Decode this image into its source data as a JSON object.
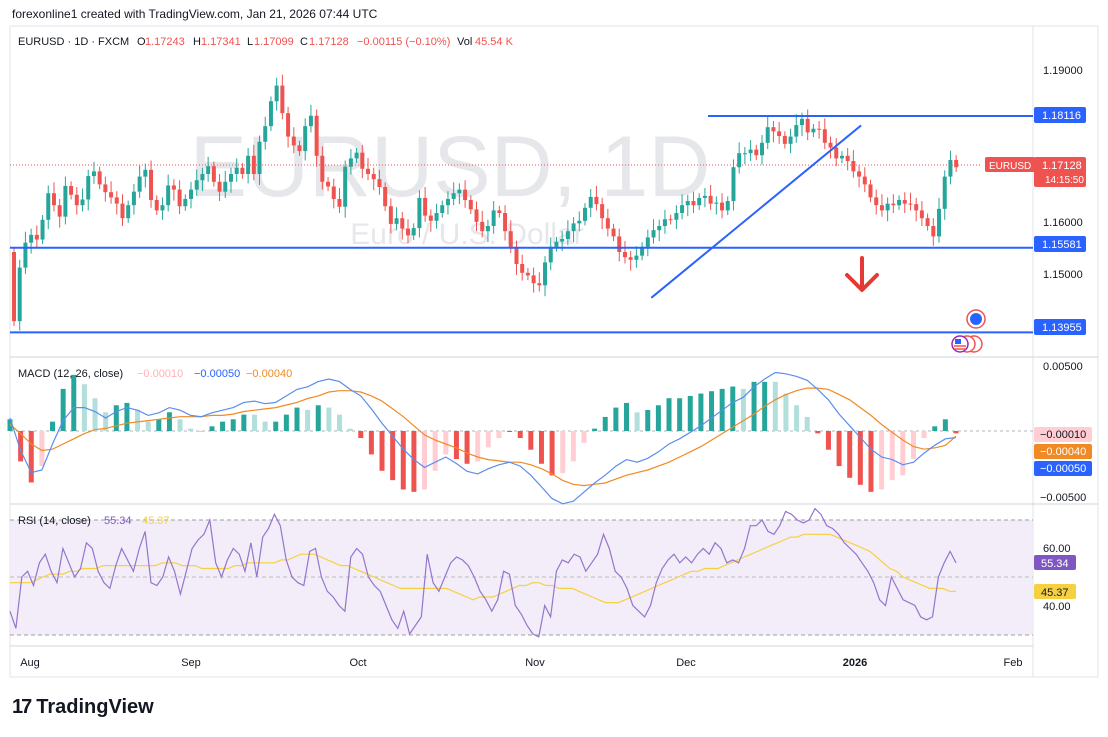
{
  "header": {
    "caption": "forexonline1 created with TradingView.com, Jan 21, 2026 07:44 UTC"
  },
  "footer": {
    "brand": "TradingView",
    "logo_icon": "tradingview-logo-icon"
  },
  "legend": {
    "symbol": "EURUSD · 1D · FXCM",
    "o_label": "O",
    "o": "1.17243",
    "h_label": "H",
    "h": "1.17341",
    "l_label": "L",
    "l": "1.17099",
    "c_label": "C",
    "c": "1.17128",
    "change": "−0.00115 (−0.10%)",
    "vol_label": "Vol",
    "vol": "45.54 K"
  },
  "watermark": {
    "title": "EURUSD, 1D",
    "subtitle": "Euro / U.S. Dollar"
  },
  "colors": {
    "up": "#26a69a",
    "down": "#ef5350",
    "line_blue": "#2962ff",
    "arrow": "#e53935",
    "macd": "#5b8def",
    "signal": "#f08a24",
    "rsi": "#9575cd",
    "rsi_ma": "#f5d142",
    "hist_up_strong": "#26a69a",
    "hist_up_weak": "#b2dfdb",
    "hist_dn_strong": "#ef5350",
    "hist_dn_weak": "#ffcdd2"
  },
  "price_axis": {
    "ticks": [
      "1.19000",
      "1.16000",
      "1.15000"
    ],
    "hlines": [
      "1.18116",
      "1.15581",
      "1.13955"
    ],
    "current_symbol": "EURUSD",
    "current_price": "1.17128",
    "countdown": "14:15:50"
  },
  "macd": {
    "label": "MACD (12, 26, close)",
    "values": [
      "−0.00010",
      "−0.00050",
      "−0.00040"
    ],
    "ticks": [
      "0.00500",
      "−0.00500"
    ],
    "badges": [
      "−0.00010",
      "−0.00040",
      "−0.00050"
    ]
  },
  "rsi": {
    "label": "RSI (14, close)",
    "values": [
      "55.34",
      "45.37"
    ],
    "ticks": [
      "60.00",
      "40.00"
    ],
    "badges": [
      "55.34",
      "45.37"
    ]
  },
  "time_axis": [
    "Aug",
    "Sep",
    "Oct",
    "Nov",
    "Dec",
    "2026",
    "Feb"
  ],
  "chart_data": [
    {
      "type": "candlestick",
      "title": "EURUSD · 1D · FXCM",
      "x_labels": [
        "Aug",
        "Sep",
        "Oct",
        "Nov",
        "Dec",
        "2026",
        "Feb"
      ],
      "ylim": [
        1.1395,
        1.1935
      ],
      "close": [
        1.1417,
        1.152,
        1.1568,
        1.1583,
        1.1574,
        1.1612,
        1.1663,
        1.164,
        1.1618,
        1.1677,
        1.166,
        1.164,
        1.1651,
        1.1696,
        1.1705,
        1.168,
        1.1665,
        1.1655,
        1.1643,
        1.1615,
        1.164,
        1.1666,
        1.1695,
        1.1708,
        1.165,
        1.163,
        1.164,
        1.1678,
        1.167,
        1.1638,
        1.1652,
        1.167,
        1.1688,
        1.17,
        1.1715,
        1.1685,
        1.1666,
        1.1685,
        1.17,
        1.1712,
        1.17,
        1.1735,
        1.17,
        1.1762,
        1.1792,
        1.184,
        1.187,
        1.1817,
        1.1772,
        1.1755,
        1.1744,
        1.1792,
        1.1812,
        1.1735,
        1.1685,
        1.1676,
        1.1652,
        1.1637,
        1.1714,
        1.173,
        1.1741,
        1.171,
        1.17,
        1.169,
        1.1675,
        1.1638,
        1.1604,
        1.1615,
        1.1595,
        1.1582,
        1.1596,
        1.1654,
        1.162,
        1.161,
        1.1625,
        1.164,
        1.1652,
        1.1663,
        1.167,
        1.165,
        1.1632,
        1.1608,
        1.159,
        1.16,
        1.163,
        1.1625,
        1.159,
        1.156,
        1.1527,
        1.151,
        1.1505,
        1.149,
        1.1486,
        1.153,
        1.156,
        1.157,
        1.1575,
        1.159,
        1.1605,
        1.161,
        1.1635,
        1.1656,
        1.1642,
        1.1615,
        1.1595,
        1.158,
        1.155,
        1.154,
        1.1535,
        1.1543,
        1.156,
        1.1578,
        1.1592,
        1.16,
        1.1613,
        1.1612,
        1.1625,
        1.164,
        1.1648,
        1.164,
        1.1654,
        1.1658,
        1.1643,
        1.1645,
        1.163,
        1.1648,
        1.1713,
        1.174,
        1.174,
        1.1747,
        1.1736,
        1.176,
        1.179,
        1.1782,
        1.1773,
        1.1758,
        1.1772,
        1.1794,
        1.1806,
        1.178,
        1.1787,
        1.1786,
        1.176,
        1.1751,
        1.173,
        1.1735,
        1.1725,
        1.1705,
        1.1695,
        1.168,
        1.1655,
        1.164,
        1.163,
        1.1643,
        1.164,
        1.165,
        1.1643,
        1.1642,
        1.163,
        1.1615,
        1.16,
        1.158,
        1.1633,
        1.1695,
        1.1727,
        1.1713
      ],
      "ma_trendline": {
        "from_index": 99,
        "from_value": 1.1485,
        "to_index": 134,
        "to_value": 1.1782
      },
      "horizontal_levels": [
        1.18116,
        1.15581,
        1.13955
      ],
      "last_close": 1.17128
    },
    {
      "type": "line",
      "title": "MACD (12, 26, close)",
      "ylim": [
        -0.0065,
        0.0063
      ],
      "series": [
        {
          "name": "MACD",
          "values": [
            0.001,
            -0.0015,
            -0.0032,
            -0.003,
            -0.001,
            0.0008,
            0.0018,
            0.0018,
            0.0015,
            0.001,
            0.0015,
            0.0018,
            0.0016,
            0.0012,
            0.0014,
            0.0018,
            0.0016,
            0.0012,
            0.0011,
            0.0014,
            0.0016,
            0.0018,
            0.0022,
            0.0023,
            0.0021,
            0.0022,
            0.0027,
            0.0032,
            0.0034,
            0.0038,
            0.004,
            0.0038,
            0.0032,
            0.0027,
            0.0017,
            0.0006,
            -0.0004,
            -0.0014,
            -0.0022,
            -0.0028,
            -0.0024,
            -0.002,
            -0.0025,
            -0.0031,
            -0.0033,
            -0.0029,
            -0.0026,
            -0.0024,
            -0.0027,
            -0.0034,
            -0.0043,
            -0.0052,
            -0.0056,
            -0.0054,
            -0.0047,
            -0.004,
            -0.0034,
            -0.0027,
            -0.0022,
            -0.0024,
            -0.0021,
            -0.0016,
            -0.001,
            -0.0006,
            -0.0001,
            0.0004,
            0.001,
            0.0016,
            0.0022,
            0.0026,
            0.0034,
            0.004,
            0.0045,
            0.0044,
            0.0042,
            0.0039,
            0.0032,
            0.0024,
            0.0013,
            0.0004,
            -0.0005,
            -0.0014,
            -0.002,
            -0.0022,
            -0.0026,
            -0.0024,
            -0.0017,
            -0.0011,
            -0.0006,
            -0.0005
          ]
        },
        {
          "name": "Signal",
          "values": [
            0.0005,
            -0.0002,
            -0.001,
            -0.0015,
            -0.0014,
            -0.001,
            -0.0006,
            -0.0002,
            0.0001,
            0.0002,
            0.0004,
            0.0006,
            0.0007,
            0.0008,
            0.0009,
            0.001,
            0.0011,
            0.0011,
            0.0011,
            0.0012,
            0.0012,
            0.0013,
            0.0015,
            0.0016,
            0.0017,
            0.0018,
            0.002,
            0.0022,
            0.0025,
            0.0027,
            0.003,
            0.0031,
            0.0031,
            0.003,
            0.0027,
            0.0023,
            0.0017,
            0.0011,
            0.0004,
            -0.0003,
            -0.0007,
            -0.001,
            -0.0013,
            -0.0017,
            -0.002,
            -0.0022,
            -0.0023,
            -0.0024,
            -0.0024,
            -0.0026,
            -0.0029,
            -0.0033,
            -0.0038,
            -0.0041,
            -0.0042,
            -0.0041,
            -0.004,
            -0.0037,
            -0.0034,
            -0.0032,
            -0.003,
            -0.0027,
            -0.0024,
            -0.002,
            -0.0016,
            -0.0012,
            -0.0007,
            -0.0002,
            0.0003,
            0.0008,
            0.0013,
            0.0019,
            0.0024,
            0.0028,
            0.0031,
            0.0033,
            0.0033,
            0.0032,
            0.0028,
            0.0024,
            0.0018,
            0.0012,
            0.0005,
            -0.0001,
            -0.0007,
            -0.0012,
            -0.0014,
            -0.0013,
            -0.0011,
            -0.0004
          ]
        }
      ]
    },
    {
      "type": "line",
      "title": "RSI (14, close)",
      "ylim": [
        27,
        75
      ],
      "series": [
        {
          "name": "RSI",
          "values": [
            38,
            32,
            50,
            52,
            47,
            55,
            58,
            52,
            48,
            60,
            55,
            50,
            53,
            62,
            60,
            52,
            48,
            46,
            54,
            60,
            56,
            52,
            60,
            66,
            48,
            47,
            50,
            57,
            52,
            44,
            52,
            60,
            63,
            65,
            70,
            55,
            50,
            56,
            60,
            58,
            52,
            62,
            50,
            64,
            67,
            72,
            68,
            56,
            50,
            48,
            47,
            59,
            60,
            50,
            45,
            43,
            40,
            38,
            57,
            60,
            58,
            50,
            47,
            45,
            40,
            35,
            32,
            38,
            30,
            33,
            36,
            58,
            48,
            45,
            50,
            55,
            57,
            56,
            54,
            50,
            45,
            42,
            38,
            42,
            52,
            51,
            40,
            37,
            33,
            30,
            29,
            40,
            36,
            52,
            56,
            55,
            58,
            57,
            52,
            55,
            58,
            65,
            60,
            52,
            50,
            46,
            40,
            38,
            36,
            40,
            48,
            53,
            56,
            58,
            55,
            57,
            55,
            58,
            60,
            58,
            62,
            60,
            55,
            56,
            55,
            60,
            68,
            68,
            70,
            66,
            65,
            68,
            73,
            72,
            70,
            69,
            70,
            74,
            72,
            68,
            67,
            65,
            62,
            60,
            58,
            55,
            52,
            48,
            42,
            40,
            50,
            46,
            42,
            41,
            40,
            36,
            35,
            36,
            50,
            55,
            59,
            55
          ]
        },
        {
          "name": "MA",
          "values": [
            48,
            48,
            48,
            48,
            49,
            50,
            51,
            51,
            51,
            52,
            52,
            53,
            53,
            53,
            54,
            54,
            54,
            54,
            54,
            54,
            54,
            54,
            54,
            55,
            55,
            55,
            54,
            54,
            54,
            53,
            53,
            53,
            53,
            53,
            54,
            54,
            55,
            55,
            55,
            55,
            55,
            56,
            56,
            57,
            58,
            58,
            58,
            57,
            56,
            55,
            54,
            54,
            53,
            52,
            51,
            50,
            49,
            48,
            47,
            46,
            46,
            46,
            46,
            46,
            46,
            46,
            46,
            45,
            44,
            43,
            42,
            43,
            43,
            43,
            44,
            45,
            46,
            47,
            47,
            48,
            48,
            47,
            47,
            46,
            46,
            46,
            45,
            44,
            43,
            42,
            41,
            41,
            41,
            42,
            43,
            44,
            45,
            46,
            47,
            48,
            49,
            50,
            51,
            52,
            52,
            53,
            53,
            53,
            54,
            55,
            56,
            57,
            58,
            59,
            60,
            61,
            62,
            63,
            64,
            64,
            65,
            65,
            65,
            65,
            65,
            64,
            63,
            62,
            61,
            60,
            59,
            57,
            55,
            53,
            52,
            50,
            49,
            48,
            47,
            46,
            46,
            46,
            45,
            45
          ]
        }
      ]
    }
  ]
}
